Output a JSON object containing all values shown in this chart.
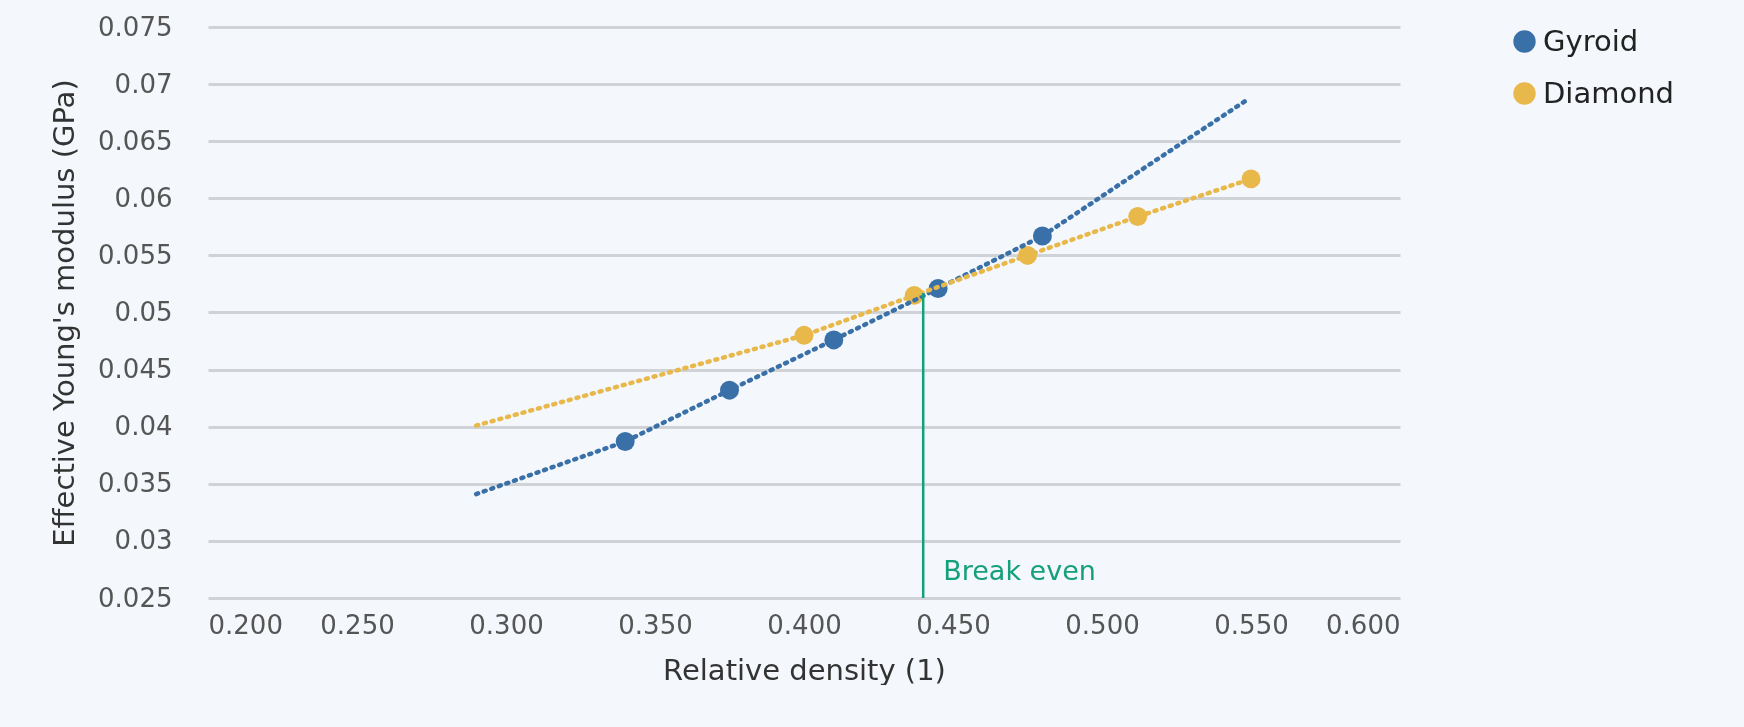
{
  "chart_data": {
    "type": "scatter",
    "xlabel": "Relative density (1)",
    "ylabel": "Effective Young's modulus (GPa)",
    "xlim": [
      0.2,
      0.6
    ],
    "xticks": [
      {
        "value": 0.2,
        "label": "0.200"
      },
      {
        "value": 0.25,
        "label": "0.250"
      },
      {
        "value": 0.3,
        "label": "0.300"
      },
      {
        "value": 0.35,
        "label": "0.350"
      },
      {
        "value": 0.4,
        "label": "0.400"
      },
      {
        "value": 0.45,
        "label": "0.450"
      },
      {
        "value": 0.5,
        "label": "0.500"
      },
      {
        "value": 0.55,
        "label": "0.550"
      },
      {
        "value": 0.6,
        "label": "0.600"
      }
    ],
    "ylim": [
      0.025,
      0.075
    ],
    "yticks": [
      0.025,
      0.03,
      0.035,
      0.04,
      0.045,
      0.05,
      0.055,
      0.06,
      0.065,
      0.07,
      0.075
    ],
    "grid": "y",
    "legend": "right",
    "series": [
      {
        "name": "Gyroid",
        "marker": "circle",
        "color": "#3a70a8",
        "x": [
          0.34,
          0.375,
          0.41,
          0.445,
          0.48
        ],
        "values": [
          0.0387,
          0.0432,
          0.0476,
          0.0521,
          0.0567
        ]
      },
      {
        "name": "Diamond",
        "marker": "circle",
        "color": "#e8b84a",
        "x": [
          0.4,
          0.437,
          0.475,
          0.512,
          0.55
        ],
        "values": [
          0.048,
          0.0515,
          0.055,
          0.0584,
          0.0617
        ]
      },
      {
        "type": "line",
        "marker": "none",
        "line_style": "dotted",
        "color": "#3a70a8",
        "x": [
          0.29,
          0.34,
          0.375,
          0.41,
          0.445,
          0.48,
          0.515,
          0.548
        ],
        "values": [
          0.0341,
          0.0387,
          0.0432,
          0.0476,
          0.0521,
          0.0567,
          0.0628,
          0.0685
        ]
      },
      {
        "type": "line",
        "marker": "none",
        "line_style": "dotted",
        "color": "#e8b84a",
        "x": [
          0.29,
          0.4,
          0.437,
          0.475,
          0.512,
          0.55
        ],
        "values": [
          0.0401,
          0.048,
          0.0515,
          0.055,
          0.0584,
          0.0617
        ]
      }
    ],
    "annotations": [
      {
        "text": "Break even",
        "x": 0.44,
        "y": 0.0517
      }
    ]
  }
}
